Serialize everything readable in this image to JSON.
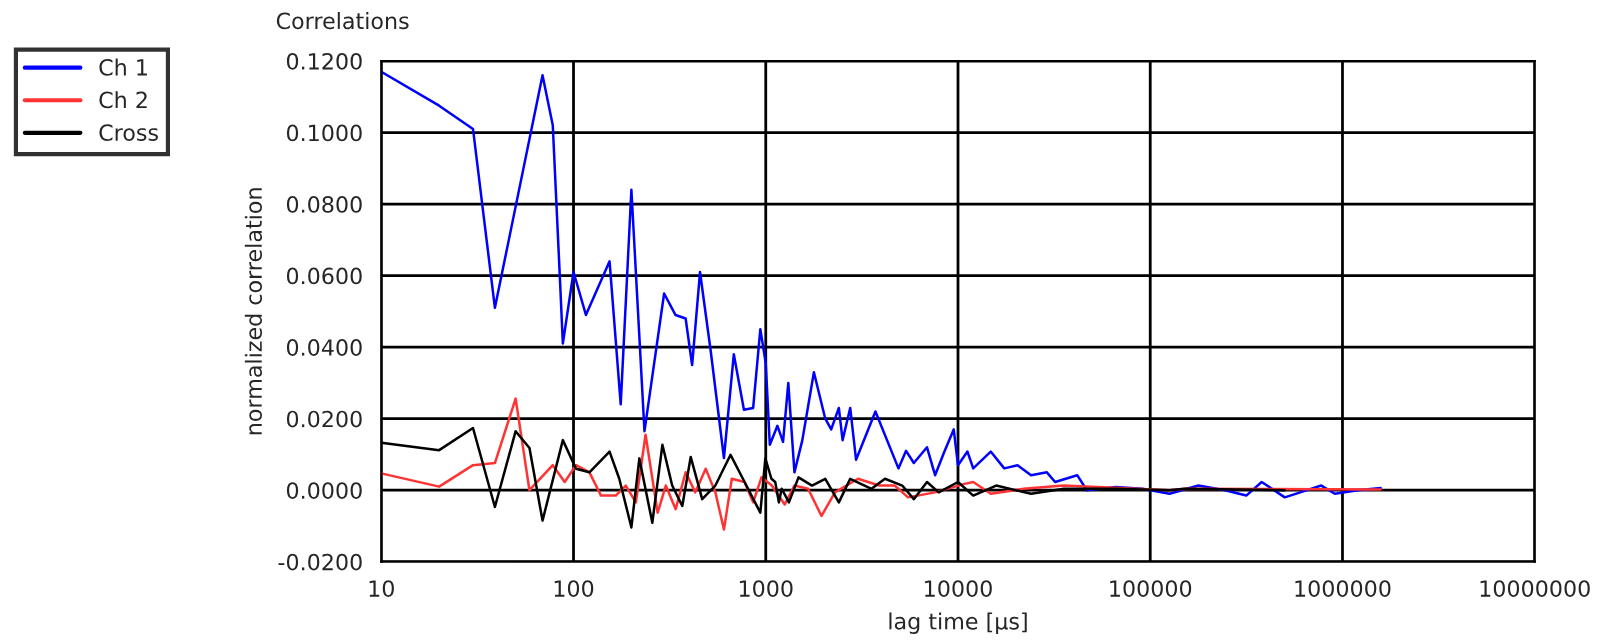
{
  "chart_data": {
    "type": "line",
    "title": "Correlations",
    "xlabel": "lag time [µs]",
    "ylabel": "normalized correlation",
    "log": "x",
    "grid": true,
    "legend": "left",
    "line_style": "solid",
    "marker": "none",
    "xlim": [
      10,
      10000000
    ],
    "xticks": [
      10,
      100,
      1000,
      10000,
      100000,
      1000000,
      10000000
    ],
    "ylim": [
      -0.02,
      0.12
    ],
    "yticks": [
      {
        "value": -0.02,
        "label": "-0.0200"
      },
      {
        "value": 0,
        "label": "0.0000"
      },
      {
        "value": 0.02,
        "label": "0.0200"
      },
      {
        "value": 0.04,
        "label": "0.0400"
      },
      {
        "value": 0.06,
        "label": "0.0600"
      },
      {
        "value": 0.08,
        "label": "0.0800"
      },
      {
        "value": 0.1,
        "label": "0.1000"
      },
      {
        "value": 0.12,
        "label": "0.1200"
      }
    ],
    "series": [
      {
        "name": "Ch 1",
        "color": "#0000ff",
        "x": [
          10,
          20,
          30,
          39,
          69,
          78,
          85,
          88,
          100,
          116,
          154,
          176,
          200,
          234,
          296,
          339,
          383,
          414,
          455,
          517,
          606,
          682,
          770,
          860,
          937,
          1000,
          1050,
          1150,
          1230,
          1310,
          1410,
          1550,
          1780,
          2040,
          2190,
          2400,
          2510,
          2750,
          2950,
          3720,
          4900,
          5370,
          5890,
          6900,
          7600,
          8500,
          9500,
          10000,
          11200,
          12000,
          14800,
          17400,
          20400,
          24000,
          29000,
          32000,
          41700,
          46800,
          66000,
          91000,
          126000,
          178000,
          245000,
          316000,
          380000,
          501000,
          603000,
          776000,
          912000,
          1200000,
          1580000
        ],
        "values": [
          0.117,
          0.1075,
          0.101,
          0.051,
          0.116,
          0.102,
          0.059,
          0.041,
          0.061,
          0.049,
          0.064,
          0.024,
          0.084,
          0.0165,
          0.055,
          0.049,
          0.048,
          0.035,
          0.061,
          0.039,
          0.009,
          0.038,
          0.0225,
          0.023,
          0.045,
          0.0355,
          0.0127,
          0.018,
          0.0135,
          0.03,
          0.005,
          0.014,
          0.033,
          0.02,
          0.017,
          0.023,
          0.014,
          0.023,
          0.0085,
          0.022,
          0.0061,
          0.011,
          0.0076,
          0.012,
          0.0042,
          0.0108,
          0.017,
          0.007,
          0.0108,
          0.0061,
          0.0108,
          0.0061,
          0.007,
          0.0042,
          0.005,
          0.0023,
          0.0042,
          0,
          0.0009,
          0.0004,
          -0.001,
          0.0013,
          0,
          -0.0015,
          0.0023,
          -0.002,
          -0.0006,
          0.0013,
          -0.001,
          0,
          0.0006
        ]
      },
      {
        "name": "Ch 2",
        "color": "#ff3333",
        "x": [
          10,
          20,
          30,
          39,
          50,
          59,
          78,
          90,
          103,
          121,
          139,
          166,
          187,
          211,
          237,
          274,
          302,
          340,
          383,
          430,
          487,
          547,
          606,
          666,
          776,
          860,
          950,
          1075,
          1255,
          1410,
          1660,
          1950,
          2290,
          3020,
          3890,
          4680,
          5500,
          7590,
          10700,
          12000,
          14800,
          21900,
          35500,
          126000,
          151000,
          1580000
        ],
        "values": [
          0.0047,
          0.001,
          0.007,
          0.0076,
          0.0256,
          0,
          0.007,
          0.0023,
          0.007,
          0.005,
          -0.0015,
          -0.0015,
          0.0013,
          -0.0034,
          0.0155,
          -0.0063,
          0.0013,
          -0.0053,
          0.005,
          -0.0006,
          0.006,
          -0.0006,
          -0.011,
          0.0032,
          0.0023,
          -0.0034,
          0.0036,
          0.0013,
          -0.004,
          0.0013,
          0.0004,
          -0.0072,
          -0.0006,
          0.0032,
          0.0013,
          0.0013,
          -0.002,
          -0.0006,
          0.0017,
          0.0023,
          -0.001,
          0.0004,
          0.0013,
          0,
          0.0004,
          0.0002
        ]
      },
      {
        "name": "Cross",
        "color": "#000000",
        "x": [
          10,
          20,
          30,
          39,
          50,
          59,
          69,
          88,
          103,
          121,
          154,
          173,
          200,
          220,
          257,
          290,
          326,
          368,
          407,
          467,
          547,
          656,
          776,
          937,
          995,
          1070,
          1120,
          1170,
          1210,
          1320,
          1480,
          1740,
          2040,
          2400,
          2750,
          3550,
          4170,
          5130,
          5890,
          6900,
          7940,
          10000,
          12000,
          15800,
          24000,
          35500,
          66000,
          126000,
          151000,
          501000
        ],
        "values": [
          0.0133,
          0.0112,
          0.0174,
          -0.0047,
          0.0165,
          0.0118,
          -0.0085,
          0.014,
          0.006,
          0.005,
          0.0108,
          0.0032,
          -0.0104,
          0.0089,
          -0.0091,
          0.0127,
          0.0013,
          -0.0044,
          0.0093,
          -0.0025,
          0.0013,
          0.0099,
          0.0023,
          -0.0063,
          0.0089,
          0.0032,
          0.0023,
          -0.0034,
          0.0004,
          -0.0034,
          0.0036,
          0.0013,
          0.0032,
          -0.0034,
          0.0032,
          0.0004,
          0.0032,
          0.0013,
          -0.0025,
          0.0023,
          -0.0006,
          0.0023,
          -0.0015,
          0.0013,
          -0.001,
          0.0004,
          0.0004,
          0,
          0.0004,
          0
        ]
      }
    ]
  }
}
